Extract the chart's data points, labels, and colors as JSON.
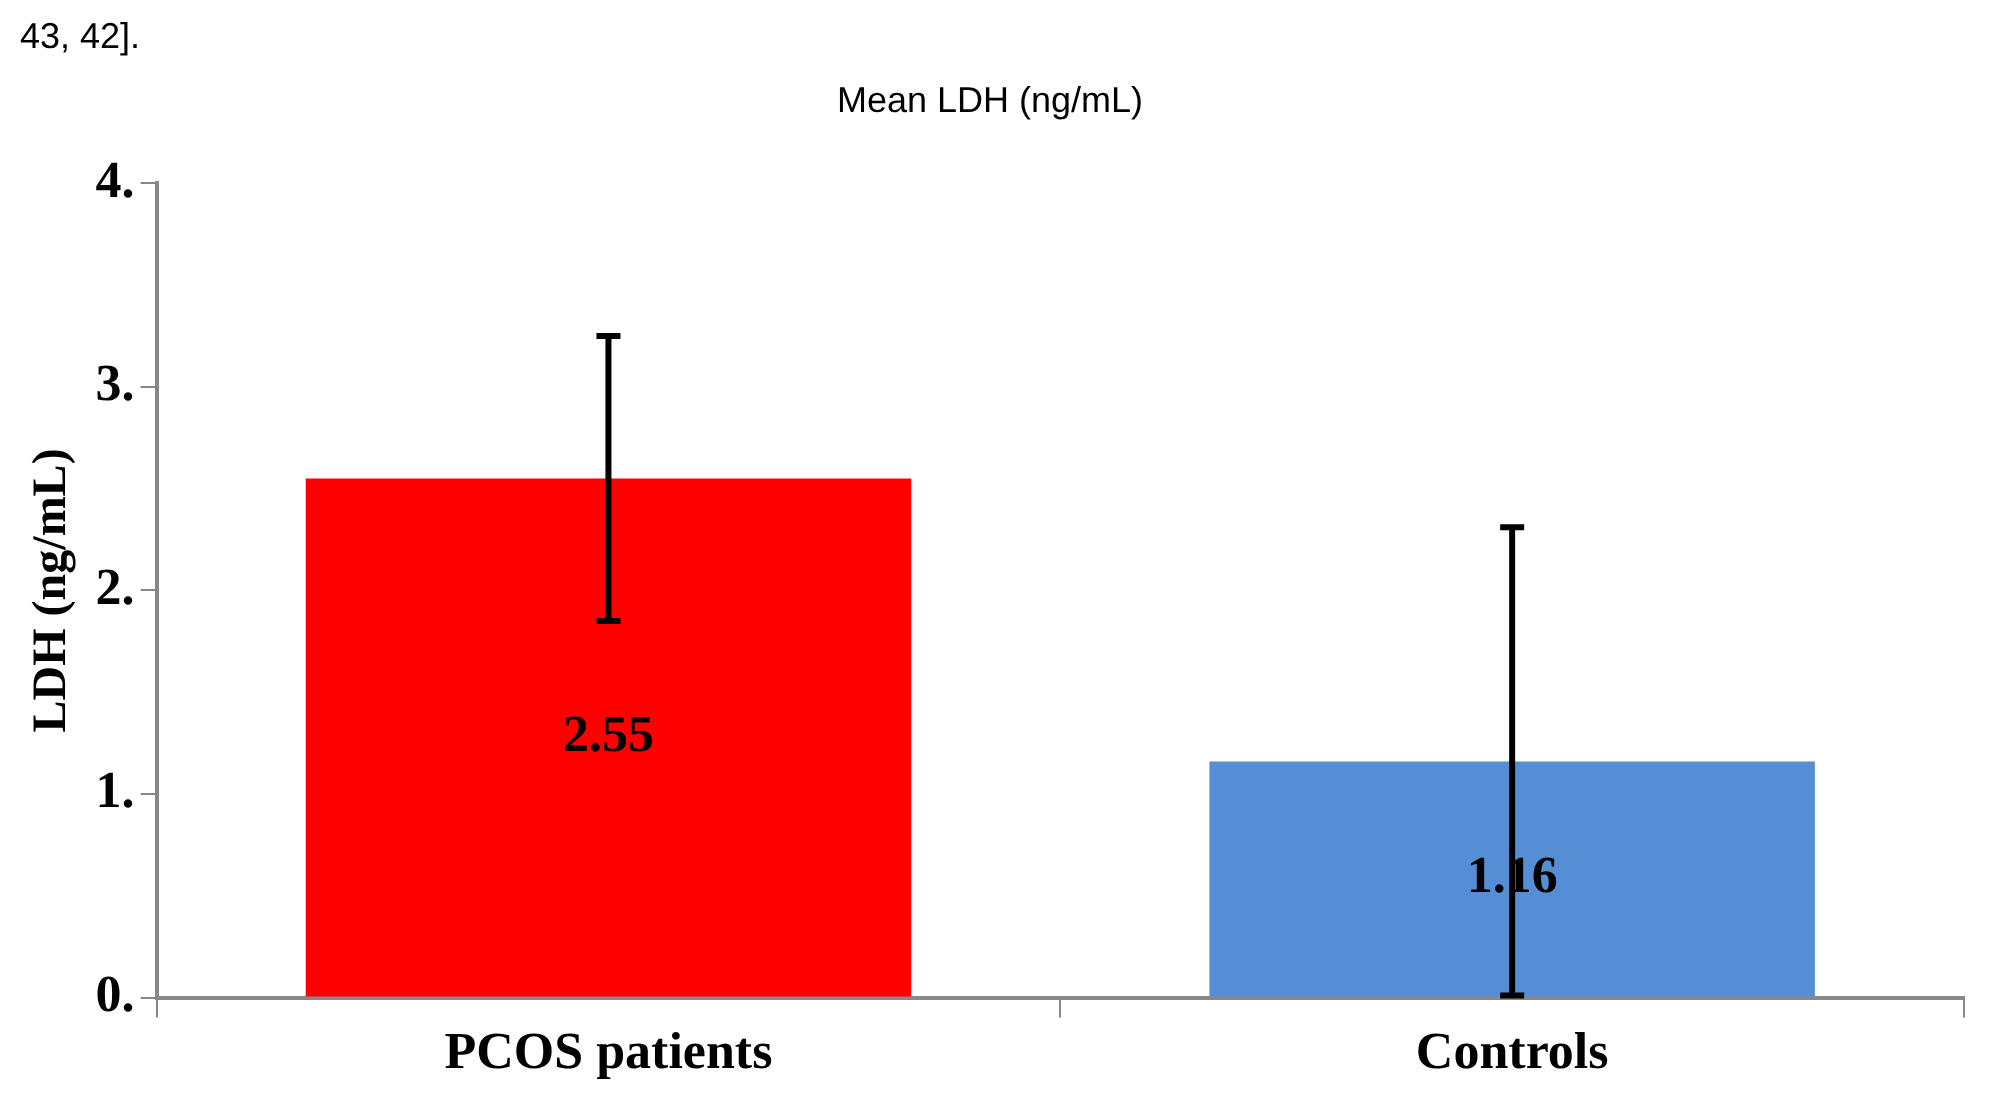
{
  "chart_data": {
    "type": "bar",
    "title": "Mean LDH (ng/mL)",
    "ylabel": "LDH (ng/mL)",
    "categories": [
      "PCOS patients",
      "Controls"
    ],
    "values": [
      2.55,
      1.16
    ],
    "colors": [
      "#ff0000",
      "#558ed5"
    ],
    "errors": [
      0.7,
      1.15
    ],
    "ylim": [
      0,
      4
    ],
    "yticks": [
      {
        "value": 0,
        "label": "0."
      },
      {
        "value": 1,
        "label": "1."
      },
      {
        "value": 2,
        "label": "2."
      },
      {
        "value": 3,
        "label": "3."
      },
      {
        "value": 4,
        "label": "4."
      }
    ],
    "data_labels": true,
    "grid": false,
    "legend": false,
    "annotations": [
      "43, 42]."
    ]
  }
}
